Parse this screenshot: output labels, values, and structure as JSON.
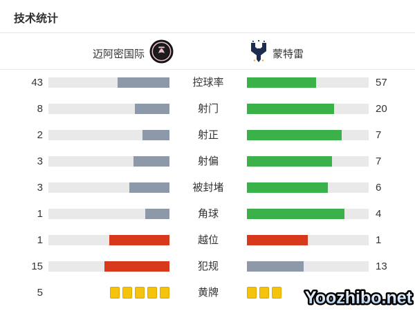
{
  "title": "技术统计",
  "teams": {
    "home": {
      "name": "迈阿密国际"
    },
    "away": {
      "name": "蒙特雷"
    }
  },
  "colors": {
    "home_bar": "#8d98a9",
    "away_bar": "#3bb14a",
    "bad_bar": "#d8381c",
    "track": "#e9e9e9",
    "card": "#f5c30d",
    "text": "#333333"
  },
  "rows": [
    {
      "label": "控球率",
      "left": {
        "value": "43",
        "pct": 43,
        "color": "#8d98a9"
      },
      "right": {
        "value": "57",
        "pct": 57,
        "color": "#3bb14a"
      }
    },
    {
      "label": "射门",
      "left": {
        "value": "8",
        "pct": 28.6,
        "color": "#8d98a9"
      },
      "right": {
        "value": "20",
        "pct": 71.4,
        "color": "#3bb14a"
      }
    },
    {
      "label": "射正",
      "left": {
        "value": "2",
        "pct": 22.2,
        "color": "#8d98a9"
      },
      "right": {
        "value": "7",
        "pct": 77.8,
        "color": "#3bb14a"
      }
    },
    {
      "label": "射偏",
      "left": {
        "value": "3",
        "pct": 30,
        "color": "#8d98a9"
      },
      "right": {
        "value": "7",
        "pct": 70,
        "color": "#3bb14a"
      }
    },
    {
      "label": "被封堵",
      "left": {
        "value": "3",
        "pct": 33.3,
        "color": "#8d98a9"
      },
      "right": {
        "value": "6",
        "pct": 66.7,
        "color": "#3bb14a"
      }
    },
    {
      "label": "角球",
      "left": {
        "value": "1",
        "pct": 20,
        "color": "#8d98a9"
      },
      "right": {
        "value": "4",
        "pct": 80,
        "color": "#3bb14a"
      }
    },
    {
      "label": "越位",
      "left": {
        "value": "1",
        "pct": 50,
        "color": "#d8381c"
      },
      "right": {
        "value": "1",
        "pct": 50,
        "color": "#d8381c"
      }
    },
    {
      "label": "犯规",
      "left": {
        "value": "15",
        "pct": 53.6,
        "color": "#d8381c"
      },
      "right": {
        "value": "13",
        "pct": 46.4,
        "color": "#8d98a9"
      }
    },
    {
      "label": "黄牌",
      "type": "cards",
      "left": {
        "value": "5",
        "cards": 5
      },
      "right": {
        "value": "",
        "cards": 3
      }
    }
  ],
  "watermark": "Yoozhibo.net",
  "chart_data": {
    "type": "bar",
    "title": "技术统计",
    "categories": [
      "控球率",
      "射门",
      "射正",
      "射偏",
      "被封堵",
      "角球",
      "越位",
      "犯规",
      "黄牌"
    ],
    "series": [
      {
        "name": "迈阿密国际",
        "values": [
          43,
          8,
          2,
          3,
          3,
          1,
          1,
          15,
          5
        ]
      },
      {
        "name": "蒙特雷",
        "values": [
          57,
          20,
          7,
          7,
          6,
          4,
          1,
          13,
          3
        ]
      }
    ],
    "layout": "paired horizontal bars, home bars anchored right, away bars anchored left",
    "legend_position": "top"
  }
}
